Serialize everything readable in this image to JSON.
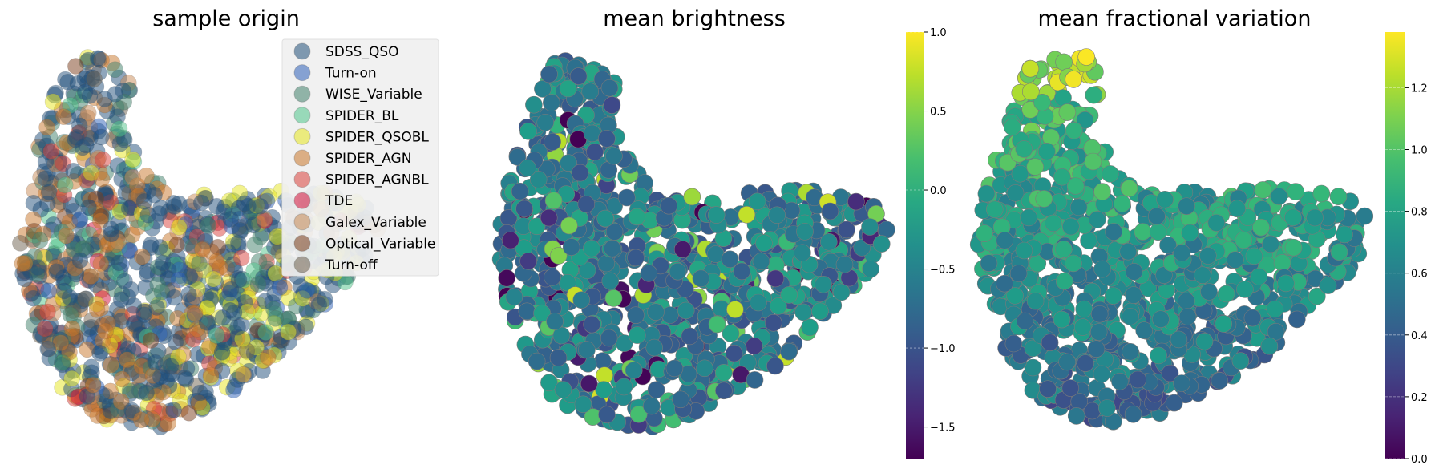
{
  "chart_data": [
    {
      "type": "scatter",
      "title": "sample origin",
      "legend_placement": "top-right",
      "grid": false,
      "axes_visible": false,
      "marker_alpha": 0.5,
      "series": [
        {
          "name": "SDSS_QSO",
          "color": "#1f4e79",
          "weight": 40
        },
        {
          "name": "Turn-on",
          "color": "#2b5fb8",
          "weight": 4
        },
        {
          "name": "WISE_Variable",
          "color": "#3f7f6a",
          "weight": 10
        },
        {
          "name": "SPIDER_BL",
          "color": "#4fc48a",
          "weight": 3
        },
        {
          "name": "SPIDER_QSOBL",
          "color": "#e6e61e",
          "weight": 9
        },
        {
          "name": "SPIDER_AGN",
          "color": "#c8762a",
          "weight": 14
        },
        {
          "name": "SPIDER_AGNBL",
          "color": "#d9403a",
          "weight": 4
        },
        {
          "name": "TDE",
          "color": "#d4103a",
          "weight": 1
        },
        {
          "name": "Galex_Variable",
          "color": "#c88a56",
          "weight": 5
        },
        {
          "name": "Optical_Variable",
          "color": "#7a3c1a",
          "weight": 3
        },
        {
          "name": "Turn-off",
          "color": "#6e6250",
          "weight": 2
        }
      ]
    },
    {
      "type": "scatter",
      "title": "mean brightness",
      "grid": false,
      "axes_visible": false,
      "colormap": "viridis",
      "colorbar": {
        "min": -1.7,
        "max": 1.0,
        "ticks": [
          1.0,
          0.5,
          0.0,
          -0.5,
          -1.0,
          -1.5
        ],
        "tick_labels": [
          "1.0",
          "0.5",
          "0.0",
          "−0.5",
          "−1.0",
          "−1.5"
        ]
      }
    },
    {
      "type": "scatter",
      "title": "mean fractional variation",
      "grid": false,
      "axes_visible": false,
      "colormap": "viridis",
      "colorbar": {
        "min": 0.0,
        "max": 1.38,
        "ticks": [
          1.2,
          1.0,
          0.8,
          0.6,
          0.4,
          0.2,
          0.0
        ],
        "tick_labels": [
          "1.2",
          "1.0",
          "0.8",
          "0.6",
          "0.4",
          "0.2",
          "0.0"
        ]
      }
    }
  ]
}
